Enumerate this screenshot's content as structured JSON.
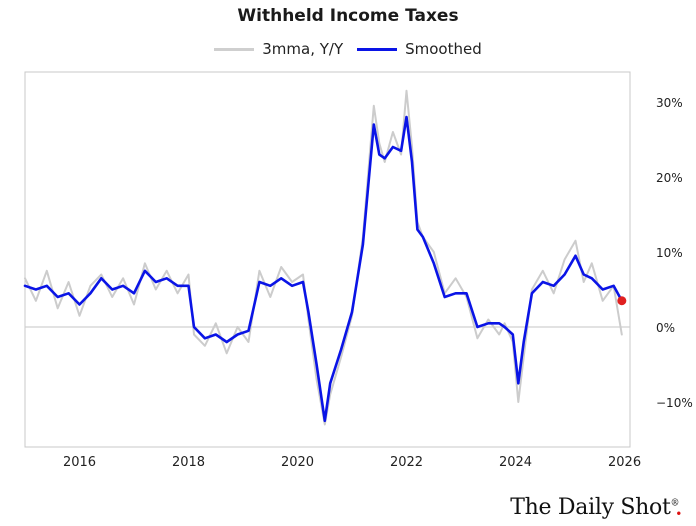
{
  "chart_data": {
    "type": "line",
    "title": "Withheld Income Taxes",
    "xlabel": "",
    "ylabel": "",
    "xlim": [
      2015.0,
      2026.1
    ],
    "ylim": [
      -16.0,
      34.0
    ],
    "x_ticks": [
      2016,
      2018,
      2020,
      2022,
      2024,
      2026
    ],
    "y_ticks": [
      30,
      20,
      10,
      0,
      -10
    ],
    "y_tick_labels": [
      "30%",
      "20%",
      "10%",
      "0%",
      "−10%"
    ],
    "x_tick_labels": [
      "2016",
      "2018",
      "2020",
      "2022",
      "2024",
      "2026"
    ],
    "legend_position": "top-center",
    "grid": false,
    "zero_line": true,
    "series": [
      {
        "name": "3mma, Y/Y",
        "color": "#cccccc",
        "x": [
          2015.0,
          2015.2,
          2015.4,
          2015.6,
          2015.8,
          2016.0,
          2016.2,
          2016.4,
          2016.6,
          2016.8,
          2017.0,
          2017.2,
          2017.4,
          2017.6,
          2017.8,
          2018.0,
          2018.1,
          2018.3,
          2018.5,
          2018.7,
          2018.9,
          2019.1,
          2019.3,
          2019.5,
          2019.7,
          2019.9,
          2020.1,
          2020.2,
          2020.35,
          2020.5,
          2020.6,
          2020.8,
          2021.0,
          2021.2,
          2021.4,
          2021.5,
          2021.6,
          2021.75,
          2021.9,
          2022.0,
          2022.1,
          2022.2,
          2022.3,
          2022.5,
          2022.7,
          2022.9,
          2023.1,
          2023.3,
          2023.5,
          2023.7,
          2023.8,
          2023.95,
          2024.05,
          2024.15,
          2024.3,
          2024.5,
          2024.7,
          2024.9,
          2025.1,
          2025.25,
          2025.4,
          2025.6,
          2025.8,
          2025.95
        ],
        "values": [
          6.5,
          3.5,
          7.5,
          2.5,
          6.0,
          1.5,
          5.5,
          7.0,
          4.0,
          6.5,
          3.0,
          8.5,
          5.0,
          7.5,
          4.5,
          7.0,
          -1.0,
          -2.5,
          0.5,
          -3.5,
          0.0,
          -2.0,
          7.5,
          4.0,
          8.0,
          6.0,
          7.0,
          1.0,
          -7.0,
          -13.0,
          -9.0,
          -4.0,
          1.5,
          12.0,
          29.5,
          24.5,
          22.0,
          26.0,
          23.0,
          31.5,
          24.0,
          14.0,
          12.0,
          10.0,
          4.5,
          6.5,
          4.0,
          -1.5,
          1.0,
          -1.0,
          0.5,
          -2.0,
          -10.0,
          -4.0,
          5.0,
          7.5,
          4.5,
          9.0,
          11.5,
          6.0,
          8.5,
          3.5,
          5.5,
          -1.0
        ]
      },
      {
        "name": "Smoothed",
        "color": "#0a14e6",
        "x": [
          2015.0,
          2015.2,
          2015.4,
          2015.6,
          2015.8,
          2016.0,
          2016.2,
          2016.4,
          2016.6,
          2016.8,
          2017.0,
          2017.2,
          2017.4,
          2017.6,
          2017.8,
          2018.0,
          2018.1,
          2018.3,
          2018.5,
          2018.7,
          2018.9,
          2019.1,
          2019.3,
          2019.5,
          2019.7,
          2019.9,
          2020.1,
          2020.2,
          2020.35,
          2020.5,
          2020.6,
          2020.8,
          2021.0,
          2021.2,
          2021.4,
          2021.5,
          2021.6,
          2021.75,
          2021.9,
          2022.0,
          2022.1,
          2022.2,
          2022.3,
          2022.5,
          2022.7,
          2022.9,
          2023.1,
          2023.3,
          2023.5,
          2023.7,
          2023.8,
          2023.95,
          2024.05,
          2024.15,
          2024.3,
          2024.5,
          2024.7,
          2024.9,
          2025.1,
          2025.25,
          2025.4,
          2025.6,
          2025.8,
          2025.95
        ],
        "values": [
          5.5,
          5.0,
          5.5,
          4.0,
          4.5,
          3.0,
          4.5,
          6.5,
          5.0,
          5.5,
          4.5,
          7.5,
          6.0,
          6.5,
          5.5,
          5.5,
          0.0,
          -1.5,
          -1.0,
          -2.0,
          -1.0,
          -0.5,
          6.0,
          5.5,
          6.5,
          5.5,
          6.0,
          2.0,
          -5.0,
          -12.5,
          -7.5,
          -3.0,
          2.0,
          11.0,
          27.0,
          23.0,
          22.5,
          24.0,
          23.5,
          28.0,
          22.0,
          13.0,
          12.0,
          8.5,
          4.0,
          4.5,
          4.5,
          0.0,
          0.5,
          0.5,
          0.0,
          -1.0,
          -7.5,
          -2.0,
          4.5,
          6.0,
          5.5,
          7.0,
          9.5,
          7.0,
          6.5,
          5.0,
          5.5,
          3.5
        ]
      }
    ],
    "last_point": {
      "x": 2025.95,
      "y": 3.5,
      "color": "#e02020"
    }
  },
  "branding": {
    "name": "The Daily Shot",
    "mark": "®"
  }
}
